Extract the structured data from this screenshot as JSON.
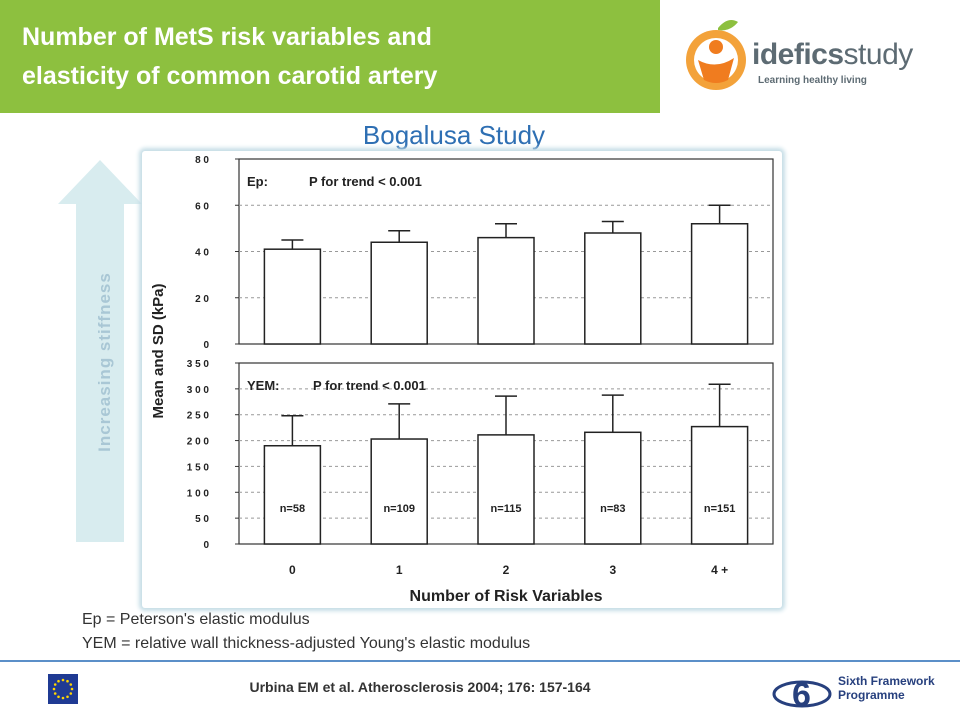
{
  "header": {
    "title_line1": "Number of MetS risk variables and",
    "title_line2": "elasticity of common carotid artery",
    "logo_bold": "idefics",
    "logo_light": "study",
    "logo_tagline": "Learning healthy living",
    "accent_color": "#8dc03f"
  },
  "subtitle": "Bogalusa Study",
  "arrow_label": "Increasing stiffness",
  "legend": {
    "ep": "Ep = Peterson's elastic modulus",
    "yem": "YEM =  relative wall thickness-adjusted Young's elastic modulus"
  },
  "footer": {
    "citation": "Urbina EM et al. Atherosclerosis 2004; 176: 157-164",
    "fp_line1": "Sixth Framework",
    "fp_line2": "Programme"
  },
  "chart_data": [
    {
      "type": "bar",
      "panel": "Ep",
      "annotation_label": "Ep:",
      "annotation_trend": "P for trend < 0.001",
      "ylabel": "Mean and SD (kPa)",
      "ylim": [
        0,
        80
      ],
      "yticks": [
        "0",
        "2 0",
        "4 0",
        "6 0",
        "8 0"
      ],
      "ytick_values": [
        0,
        20,
        40,
        60,
        80
      ],
      "categories": [
        "0",
        "1",
        "2",
        "3",
        "4 +"
      ],
      "values": [
        41,
        44,
        46,
        48,
        52
      ],
      "sd": [
        4,
        5,
        6,
        5,
        8
      ],
      "grid": true
    },
    {
      "type": "bar",
      "panel": "YEM",
      "annotation_label": "YEM:",
      "annotation_trend": "P for trend < 0.001",
      "ylabel": "Mean and SD (kPa)",
      "ylim": [
        0,
        350
      ],
      "yticks": [
        "0",
        "5 0",
        "1 0 0",
        "1 5 0",
        "2 0 0",
        "2 5 0",
        "3 0 0",
        "3 5 0"
      ],
      "ytick_values": [
        0,
        50,
        100,
        150,
        200,
        250,
        300,
        350
      ],
      "xlabel": "Number of Risk Variables",
      "categories": [
        "0",
        "1",
        "2",
        "3",
        "4 +"
      ],
      "values": [
        190,
        203,
        211,
        216,
        227
      ],
      "sd": [
        58,
        68,
        75,
        72,
        82
      ],
      "n_labels": [
        "n=58",
        "n=109",
        "n=115",
        "n=83",
        "n=151"
      ],
      "grid": true
    }
  ]
}
